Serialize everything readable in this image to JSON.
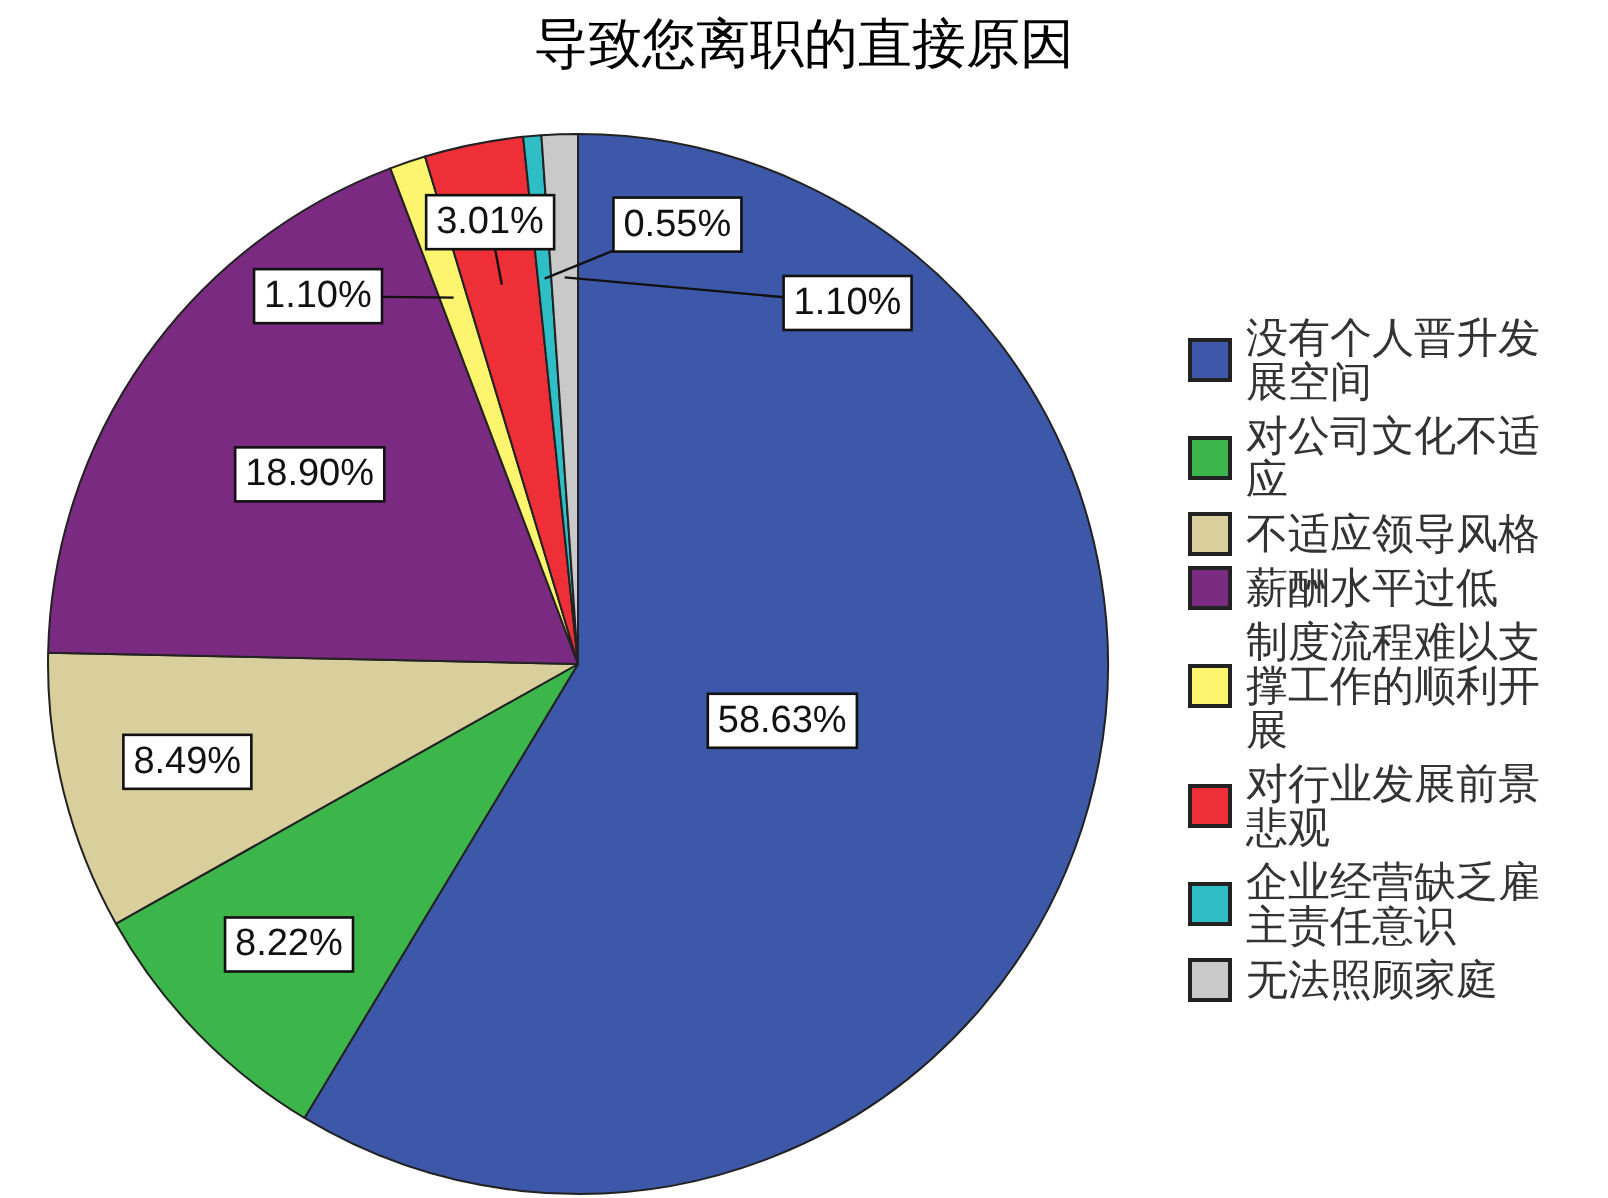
{
  "chart_data": {
    "type": "pie",
    "title": "导致您离职的直接原因",
    "categories": [
      "没有个人晋升发展空间",
      "对公司文化不适应",
      "不适应领导风格",
      "薪酬水平过低",
      "制度流程难以支撑工作的顺利开展",
      "对行业发展前景悲观",
      "企业经营缺乏雇主责任意识",
      "无法照顾家庭"
    ],
    "values": [
      58.63,
      8.22,
      8.49,
      18.9,
      1.1,
      3.01,
      0.55,
      1.1
    ],
    "colors": [
      "#3d58a8",
      "#3cb54a",
      "#d9cf9c",
      "#7a2a80",
      "#fdf56e",
      "#ee2f37",
      "#30bec6",
      "#c9c9c9"
    ],
    "value_labels": [
      "58.63%",
      "8.22%",
      "8.49%",
      "18.90%",
      "1.10%",
      "3.01%",
      "0.55%",
      "1.10%"
    ],
    "legend": "right"
  }
}
